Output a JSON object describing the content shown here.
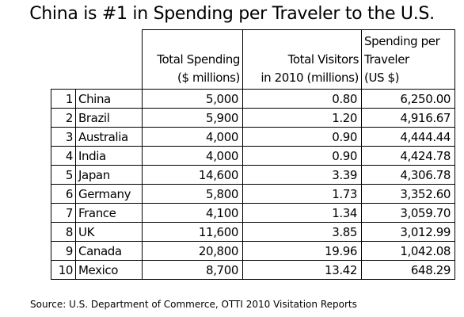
{
  "chart_data": {
    "type": "table",
    "title": "China is #1 in Spending per Traveler to the U.S.",
    "columns": [
      {
        "key": "spending",
        "lines": [
          "Total Spending",
          "($ millions)"
        ]
      },
      {
        "key": "visitors",
        "lines": [
          "Total Visitors",
          "in 2010 (millions)"
        ]
      },
      {
        "key": "per_traveler",
        "lines": [
          "Spending per",
          "Traveler",
          "(US $)"
        ]
      }
    ],
    "rows": [
      {
        "rank": "1",
        "country": "China",
        "spending": "5,000",
        "visitors": "0.80",
        "per_traveler": "6,250.00"
      },
      {
        "rank": "2",
        "country": "Brazil",
        "spending": "5,900",
        "visitors": "1.20",
        "per_traveler": "4,916.67"
      },
      {
        "rank": "3",
        "country": "Australia",
        "spending": "4,000",
        "visitors": "0.90",
        "per_traveler": "4,444.44"
      },
      {
        "rank": "4",
        "country": "India",
        "spending": "4,000",
        "visitors": "0.90",
        "per_traveler": "4,424.78"
      },
      {
        "rank": "5",
        "country": "Japan",
        "spending": "14,600",
        "visitors": "3.39",
        "per_traveler": "4,306.78"
      },
      {
        "rank": "6",
        "country": "Germany",
        "spending": "5,800",
        "visitors": "1.73",
        "per_traveler": "3,352.60"
      },
      {
        "rank": "7",
        "country": "France",
        "spending": "4,100",
        "visitors": "1.34",
        "per_traveler": "3,059.70"
      },
      {
        "rank": "8",
        "country": "UK",
        "spending": "11,600",
        "visitors": "3.85",
        "per_traveler": "3,012.99"
      },
      {
        "rank": "9",
        "country": "Canada",
        "spending": "20,800",
        "visitors": "19.96",
        "per_traveler": "1,042.08"
      },
      {
        "rank": "10",
        "country": "Mexico",
        "spending": "8,700",
        "visitors": "13.42",
        "per_traveler": "648.29"
      }
    ],
    "source": "Source: U.S. Department of Commerce, OTTI 2010 Visitation Reports"
  }
}
